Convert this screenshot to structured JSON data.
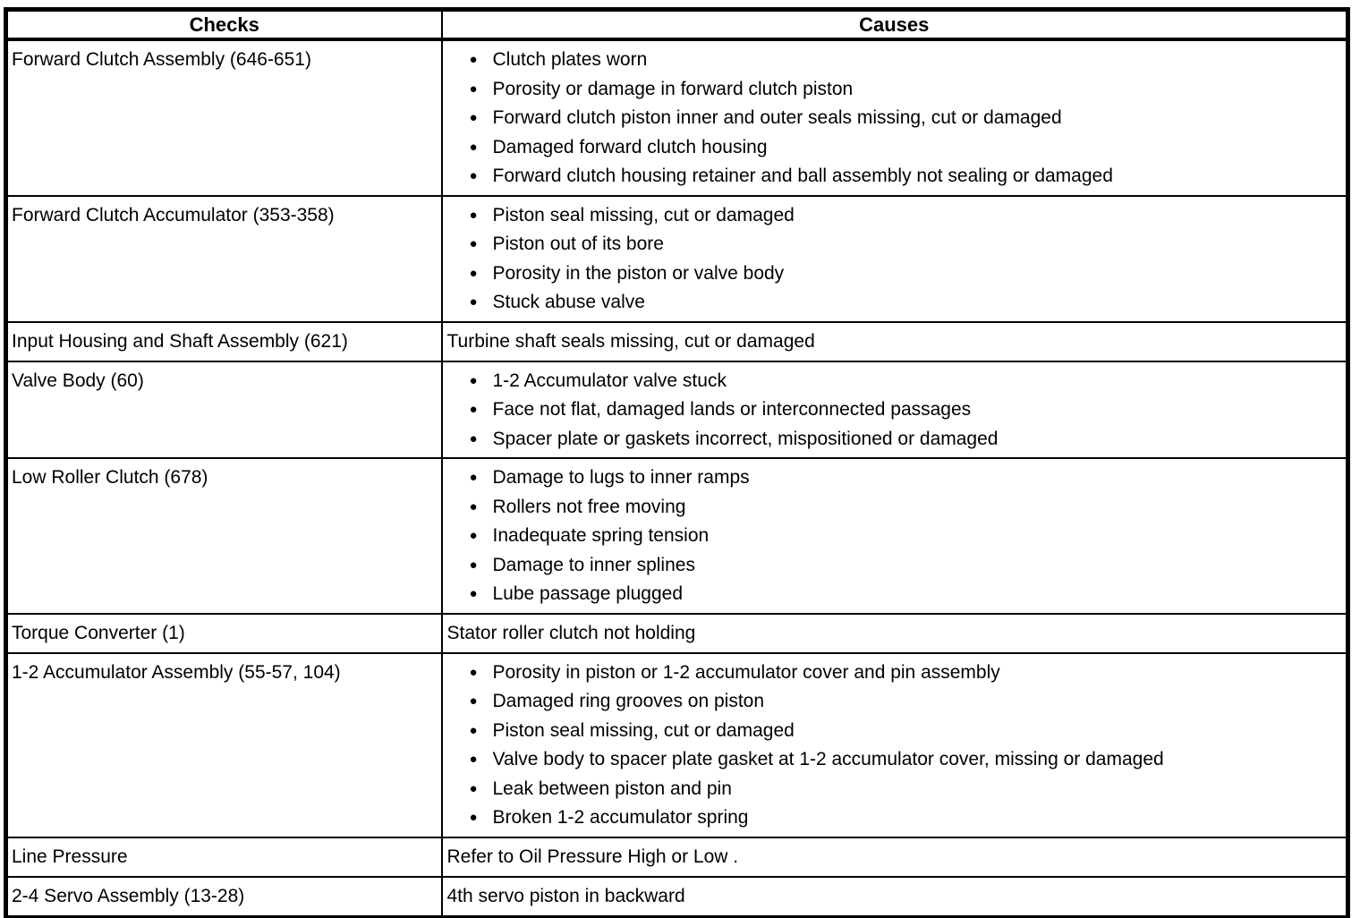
{
  "table": {
    "headers": [
      "Checks",
      "Causes"
    ],
    "bullet_icon": "●",
    "colors": {
      "text": "#000000",
      "border": "#000000",
      "background": "#ffffff"
    },
    "rows": [
      {
        "check": "Forward Clutch Assembly (646-651)",
        "bulleted": true,
        "causes": [
          "Clutch plates worn",
          "Porosity or damage in forward clutch piston",
          "Forward clutch piston inner and outer seals missing, cut or damaged",
          "Damaged forward clutch housing",
          "Forward clutch housing retainer and ball assembly not sealing or damaged"
        ]
      },
      {
        "check": "Forward Clutch Accumulator (353-358)",
        "bulleted": true,
        "causes": [
          "Piston seal missing, cut or damaged",
          "Piston out of its bore",
          "Porosity in the piston or valve body",
          "Stuck abuse valve"
        ]
      },
      {
        "check": "Input Housing and Shaft Assembly (621)",
        "bulleted": false,
        "causes": [
          "Turbine shaft seals missing, cut or damaged"
        ]
      },
      {
        "check": "Valve Body (60)",
        "bulleted": true,
        "causes": [
          "1-2 Accumulator valve stuck",
          "Face not flat, damaged lands or interconnected passages",
          "Spacer plate or gaskets incorrect, mispositioned or damaged"
        ]
      },
      {
        "check": "Low Roller Clutch (678)",
        "bulleted": true,
        "causes": [
          "Damage to lugs to inner ramps",
          "Rollers not free moving",
          "Inadequate spring tension",
          "Damage to inner splines",
          "Lube passage plugged"
        ]
      },
      {
        "check": "Torque Converter (1)",
        "bulleted": false,
        "causes": [
          "Stator roller clutch not holding"
        ]
      },
      {
        "check": "1-2 Accumulator Assembly (55-57, 104)",
        "bulleted": true,
        "causes": [
          "Porosity in piston or 1-2 accumulator cover and pin assembly",
          "Damaged ring grooves on piston",
          "Piston seal missing, cut or damaged",
          "Valve body to spacer plate gasket at 1-2 accumulator cover, missing or damaged",
          "Leak between piston and pin",
          "Broken 1-2 accumulator spring"
        ]
      },
      {
        "check": "Line Pressure",
        "bulleted": false,
        "causes": [
          "Refer to Oil Pressure High or Low ."
        ]
      },
      {
        "check": "2-4 Servo Assembly (13-28)",
        "bulleted": false,
        "causes": [
          "4th servo piston in backward"
        ]
      }
    ]
  }
}
